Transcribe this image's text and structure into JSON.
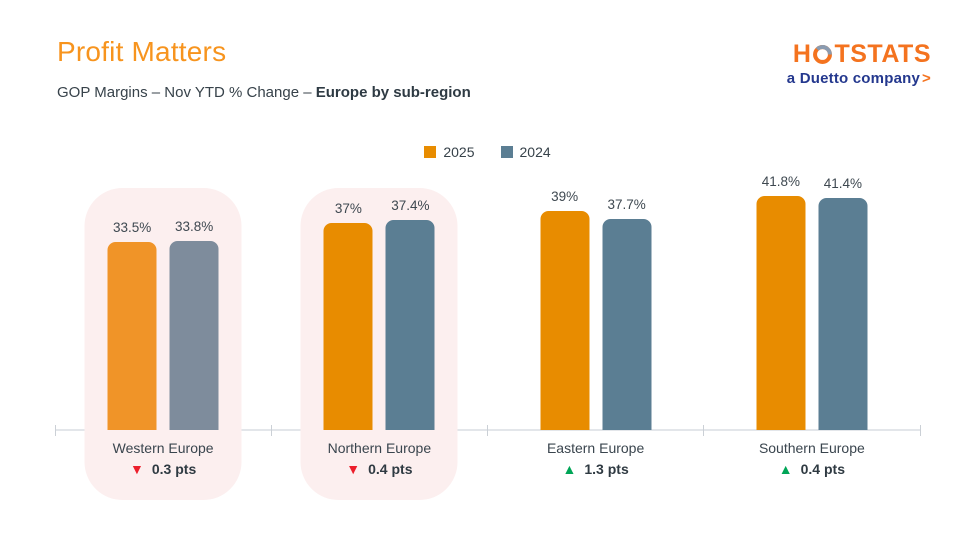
{
  "header": {
    "title": "Profit Matters",
    "subtitle_prefix": "GOP Margins – Nov YTD % Change – ",
    "subtitle_bold": "Europe by sub-region"
  },
  "logo": {
    "brand_left": "H",
    "brand_right": "TSTATS",
    "brand_full": "HOTSTATS",
    "tagline": "a Duetto company",
    "arrow": ">"
  },
  "legend": {
    "items": [
      {
        "label": "2025",
        "color": "#E88C00"
      },
      {
        "label": "2024",
        "color": "#5B7E93"
      }
    ]
  },
  "chart_data": {
    "type": "bar",
    "title": "GOP Margins – Nov YTD % Change – Europe by sub-region",
    "categories": [
      "Western Europe",
      "Northern Europe",
      "Eastern Europe",
      "Southern Europe"
    ],
    "series": [
      {
        "name": "2025",
        "values": [
          33.5,
          37.0,
          39.0,
          41.8
        ],
        "labels": [
          "33.5%",
          "37%",
          "39%",
          "41.8%"
        ],
        "colors": [
          "#F09428",
          "#E88C00",
          "#E88C00",
          "#E88C00"
        ]
      },
      {
        "name": "2024",
        "values": [
          33.8,
          37.4,
          37.7,
          41.4
        ],
        "labels": [
          "33.8%",
          "37.4%",
          "37.7%",
          "41.4%"
        ],
        "colors": [
          "#7E8C9C",
          "#5B7E93",
          "#5B7E93",
          "#5B7E93"
        ]
      }
    ],
    "changes": [
      {
        "direction": "down",
        "label": "0.3 pts"
      },
      {
        "direction": "down",
        "label": "0.4 pts"
      },
      {
        "direction": "up",
        "label": "1.3 pts"
      },
      {
        "direction": "up",
        "label": "0.4 pts"
      }
    ],
    "highlighted": [
      true,
      true,
      false,
      false
    ],
    "ylim": [
      0,
      44.6
    ],
    "grid": false,
    "legend_position": "top-center",
    "status_colors": {
      "up": "#00A557",
      "down": "#EC1E2B",
      "highlight_bg": "#FCEFEF"
    }
  }
}
